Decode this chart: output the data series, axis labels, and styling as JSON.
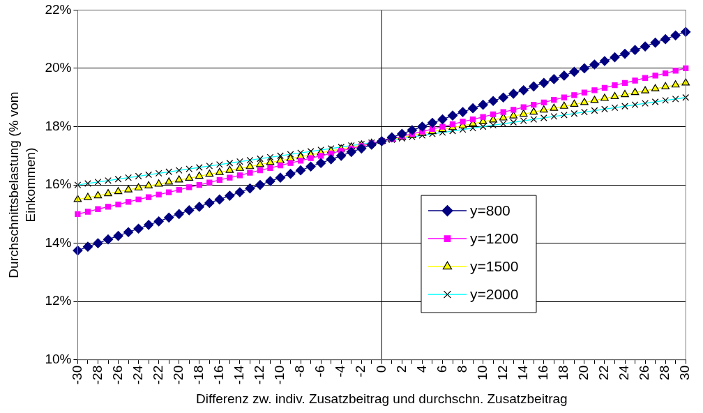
{
  "chart_data": {
    "type": "line",
    "xlabel": "Differenz zw. indiv. Zusatzbeitrag und durchschn. Zusatzbeitrag",
    "ylabel": "Durchschnittsbelastung (% vom Einkommen)",
    "categories": [
      "-30",
      null,
      "-28",
      null,
      "-26",
      null,
      "-24",
      null,
      "-22",
      null,
      "-20",
      null,
      "-18",
      null,
      "-16",
      null,
      "-14",
      null,
      "-12",
      null,
      "-10",
      null,
      "-8",
      null,
      "-6",
      null,
      "-4",
      null,
      "-2",
      null,
      "0",
      null,
      "2",
      null,
      "4",
      null,
      "6",
      null,
      "8",
      null,
      "10",
      null,
      "12",
      null,
      "14",
      null,
      "16",
      null,
      "18",
      null,
      "20",
      null,
      "22",
      null,
      "24",
      null,
      "26",
      null,
      "28",
      null,
      "30"
    ],
    "series": [
      {
        "name": "y=800",
        "color": "#000080",
        "marker": "diamond",
        "values": [
          13.75,
          13.88,
          14,
          14.13,
          14.25,
          14.38,
          14.5,
          14.63,
          14.75,
          14.88,
          15,
          15.13,
          15.25,
          15.38,
          15.5,
          15.63,
          15.75,
          15.88,
          16,
          16.13,
          16.25,
          16.38,
          16.5,
          16.63,
          16.75,
          16.88,
          17,
          17.13,
          17.25,
          17.38,
          17.5,
          17.63,
          17.75,
          17.88,
          18,
          18.13,
          18.25,
          18.38,
          18.5,
          18.63,
          18.75,
          18.88,
          19,
          19.13,
          19.25,
          19.38,
          19.5,
          19.63,
          19.75,
          19.88,
          20,
          20.13,
          20.25,
          20.38,
          20.5,
          20.63,
          20.75,
          20.88,
          21,
          21.13,
          21.25
        ]
      },
      {
        "name": "y=1200",
        "color": "#ff00ff",
        "marker": "square",
        "values": [
          15,
          15.08,
          15.17,
          15.25,
          15.33,
          15.42,
          15.5,
          15.58,
          15.67,
          15.75,
          15.83,
          15.92,
          16,
          16.08,
          16.17,
          16.25,
          16.33,
          16.42,
          16.5,
          16.58,
          16.67,
          16.75,
          16.83,
          16.92,
          17,
          17.08,
          17.17,
          17.25,
          17.33,
          17.42,
          17.5,
          17.58,
          17.67,
          17.75,
          17.83,
          17.92,
          18,
          18.08,
          18.17,
          18.25,
          18.33,
          18.42,
          18.5,
          18.58,
          18.67,
          18.75,
          18.83,
          18.92,
          19,
          19.08,
          19.17,
          19.25,
          19.33,
          19.42,
          19.5,
          19.58,
          19.67,
          19.75,
          19.83,
          19.92,
          20
        ]
      },
      {
        "name": "y=1500",
        "color": "#ffff00",
        "marker": "triangle",
        "values": [
          15.5,
          15.57,
          15.63,
          15.7,
          15.77,
          15.83,
          15.9,
          15.97,
          16.03,
          16.1,
          16.17,
          16.23,
          16.3,
          16.37,
          16.43,
          16.5,
          16.57,
          16.63,
          16.7,
          16.77,
          16.83,
          16.9,
          16.97,
          17.03,
          17.1,
          17.17,
          17.23,
          17.3,
          17.37,
          17.43,
          17.5,
          17.57,
          17.63,
          17.7,
          17.77,
          17.83,
          17.9,
          17.97,
          18.03,
          18.1,
          18.17,
          18.23,
          18.3,
          18.37,
          18.43,
          18.5,
          18.57,
          18.63,
          18.7,
          18.77,
          18.83,
          18.9,
          18.97,
          19.03,
          19.1,
          19.17,
          19.23,
          19.3,
          19.37,
          19.43,
          19.5
        ]
      },
      {
        "name": "y=2000",
        "color": "#00ffff",
        "marker": "cross",
        "values": [
          16,
          16.05,
          16.1,
          16.15,
          16.2,
          16.25,
          16.3,
          16.35,
          16.4,
          16.45,
          16.5,
          16.55,
          16.6,
          16.65,
          16.7,
          16.75,
          16.8,
          16.85,
          16.9,
          16.95,
          17,
          17.05,
          17.1,
          17.15,
          17.2,
          17.25,
          17.3,
          17.35,
          17.4,
          17.45,
          17.5,
          17.55,
          17.6,
          17.65,
          17.7,
          17.75,
          17.8,
          17.85,
          17.9,
          17.95,
          18,
          18.05,
          18.1,
          18.15,
          18.2,
          18.25,
          18.3,
          18.35,
          18.4,
          18.45,
          18.5,
          18.55,
          18.6,
          18.65,
          18.7,
          18.75,
          18.8,
          18.85,
          18.9,
          18.95,
          19
        ]
      }
    ],
    "ylim": [
      10,
      22
    ],
    "yticks": [
      {
        "value": 10,
        "label": "10%"
      },
      {
        "value": 12,
        "label": "12%"
      },
      {
        "value": 14,
        "label": "14%"
      },
      {
        "value": 16,
        "label": "16%"
      },
      {
        "value": 18,
        "label": "18%"
      },
      {
        "value": 20,
        "label": "20%"
      },
      {
        "value": 22,
        "label": "22%"
      }
    ],
    "ref_lines": [
      {
        "axis": "x",
        "value": "0",
        "color": "#000000"
      }
    ],
    "grid": "y",
    "legend": "right",
    "line_style": "solid"
  }
}
